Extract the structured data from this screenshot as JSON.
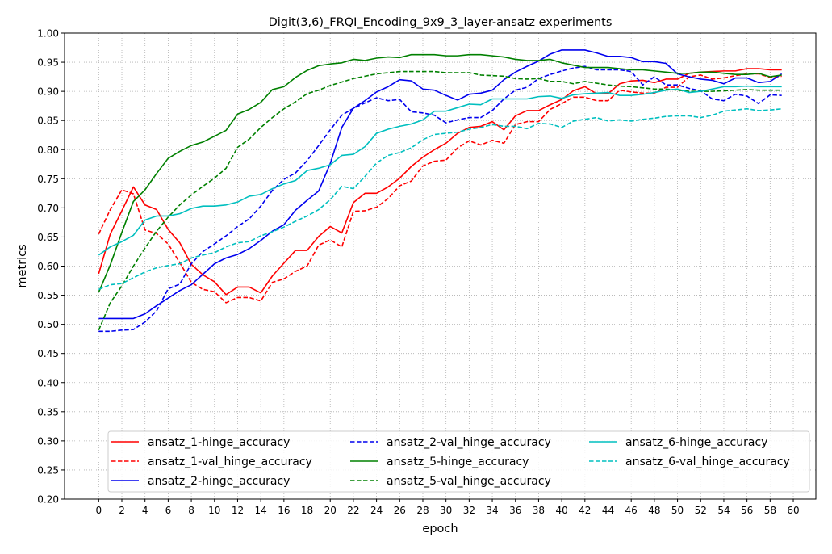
{
  "chart_data": {
    "type": "line",
    "title": "Digit(3,6)_FRQI_Encoding_9x9_3_layer-ansatz experiments",
    "xlabel": "epoch",
    "ylabel": "metrics",
    "xlim": [
      -2.95,
      61.95
    ],
    "ylim": [
      0.2,
      1.0
    ],
    "xticks": [
      0,
      2,
      4,
      6,
      8,
      10,
      12,
      14,
      16,
      18,
      20,
      22,
      24,
      26,
      28,
      30,
      32,
      34,
      36,
      38,
      40,
      42,
      44,
      46,
      48,
      50,
      52,
      54,
      56,
      58,
      60
    ],
    "yticks": [
      0.2,
      0.25,
      0.3,
      0.35,
      0.4,
      0.45,
      0.5,
      0.55,
      0.6,
      0.65,
      0.7,
      0.75,
      0.8,
      0.85,
      0.9,
      0.95,
      1.0
    ],
    "ytick_labels": [
      "0.20",
      "0.25",
      "0.30",
      "0.35",
      "0.40",
      "0.45",
      "0.50",
      "0.55",
      "0.60",
      "0.65",
      "0.70",
      "0.75",
      "0.80",
      "0.85",
      "0.90",
      "0.95",
      "1.00"
    ],
    "grid": true,
    "legend_position": "lower-center",
    "legend_columns": 3,
    "x": [
      0,
      1,
      2,
      3,
      4,
      5,
      6,
      7,
      8,
      9,
      10,
      11,
      12,
      13,
      14,
      15,
      16,
      17,
      18,
      19,
      20,
      21,
      22,
      23,
      24,
      25,
      26,
      27,
      28,
      29,
      30,
      31,
      32,
      33,
      34,
      35,
      36,
      37,
      38,
      39,
      40,
      41,
      42,
      43,
      44,
      45,
      46,
      47,
      48,
      49,
      50,
      51,
      52,
      53,
      54,
      55,
      56,
      57,
      58,
      59
    ],
    "series": [
      {
        "name": "ansatz_1-hinge_accuracy",
        "color": "#ff0000",
        "dash": "solid",
        "values": [
          0.587,
          0.655,
          0.695,
          0.736,
          0.705,
          0.697,
          0.663,
          0.64,
          0.603,
          0.585,
          0.573,
          0.551,
          0.564,
          0.564,
          0.554,
          0.583,
          0.605,
          0.627,
          0.627,
          0.651,
          0.668,
          0.657,
          0.709,
          0.725,
          0.725,
          0.736,
          0.751,
          0.771,
          0.787,
          0.8,
          0.811,
          0.828,
          0.838,
          0.84,
          0.848,
          0.834,
          0.858,
          0.867,
          0.867,
          0.877,
          0.886,
          0.901,
          0.908,
          0.896,
          0.896,
          0.913,
          0.918,
          0.919,
          0.915,
          0.921,
          0.921,
          0.931,
          0.933,
          0.934,
          0.935,
          0.935,
          0.939,
          0.939,
          0.937,
          0.937
        ]
      },
      {
        "name": "ansatz_1-val_hinge_accuracy",
        "color": "#ff0000",
        "dash": "dashed",
        "values": [
          0.655,
          0.697,
          0.731,
          0.724,
          0.662,
          0.656,
          0.638,
          0.606,
          0.572,
          0.56,
          0.556,
          0.537,
          0.546,
          0.546,
          0.54,
          0.572,
          0.578,
          0.591,
          0.6,
          0.636,
          0.645,
          0.633,
          0.694,
          0.695,
          0.701,
          0.716,
          0.738,
          0.746,
          0.772,
          0.78,
          0.782,
          0.803,
          0.815,
          0.808,
          0.816,
          0.811,
          0.843,
          0.848,
          0.848,
          0.869,
          0.879,
          0.89,
          0.89,
          0.884,
          0.884,
          0.902,
          0.899,
          0.897,
          0.897,
          0.907,
          0.907,
          0.925,
          0.928,
          0.921,
          0.923,
          0.927,
          0.93,
          0.93,
          0.924,
          0.926
        ]
      },
      {
        "name": "ansatz_2-hinge_accuracy",
        "color": "#0000ee",
        "dash": "solid",
        "values": [
          0.51,
          0.51,
          0.51,
          0.51,
          0.518,
          0.532,
          0.545,
          0.558,
          0.568,
          0.586,
          0.604,
          0.614,
          0.62,
          0.63,
          0.644,
          0.66,
          0.671,
          0.696,
          0.713,
          0.729,
          0.776,
          0.838,
          0.871,
          0.884,
          0.899,
          0.908,
          0.92,
          0.918,
          0.904,
          0.902,
          0.893,
          0.885,
          0.895,
          0.897,
          0.902,
          0.92,
          0.933,
          0.943,
          0.952,
          0.964,
          0.971,
          0.971,
          0.971,
          0.966,
          0.96,
          0.96,
          0.958,
          0.951,
          0.951,
          0.948,
          0.93,
          0.925,
          0.921,
          0.919,
          0.913,
          0.923,
          0.923,
          0.915,
          0.917,
          0.93
        ]
      },
      {
        "name": "ansatz_2-val_hinge_accuracy",
        "color": "#0000ee",
        "dash": "dashed",
        "values": [
          0.488,
          0.488,
          0.49,
          0.491,
          0.504,
          0.523,
          0.561,
          0.569,
          0.604,
          0.625,
          0.638,
          0.652,
          0.668,
          0.681,
          0.703,
          0.73,
          0.749,
          0.76,
          0.781,
          0.807,
          0.834,
          0.859,
          0.871,
          0.88,
          0.889,
          0.884,
          0.886,
          0.865,
          0.863,
          0.859,
          0.846,
          0.851,
          0.855,
          0.855,
          0.867,
          0.887,
          0.902,
          0.907,
          0.922,
          0.929,
          0.935,
          0.94,
          0.943,
          0.937,
          0.937,
          0.937,
          0.934,
          0.911,
          0.925,
          0.911,
          0.911,
          0.905,
          0.901,
          0.887,
          0.884,
          0.895,
          0.892,
          0.879,
          0.894,
          0.893
        ]
      },
      {
        "name": "ansatz_5-hinge_accuracy",
        "color": "#008000",
        "dash": "solid",
        "values": [
          0.555,
          0.602,
          0.658,
          0.711,
          0.731,
          0.759,
          0.785,
          0.797,
          0.807,
          0.813,
          0.823,
          0.833,
          0.861,
          0.869,
          0.881,
          0.903,
          0.908,
          0.924,
          0.936,
          0.944,
          0.947,
          0.949,
          0.955,
          0.953,
          0.957,
          0.959,
          0.958,
          0.963,
          0.963,
          0.963,
          0.961,
          0.961,
          0.963,
          0.963,
          0.961,
          0.959,
          0.955,
          0.953,
          0.953,
          0.955,
          0.949,
          0.945,
          0.941,
          0.941,
          0.941,
          0.939,
          0.937,
          0.937,
          0.935,
          0.933,
          0.931,
          0.931,
          0.933,
          0.933,
          0.931,
          0.929,
          0.929,
          0.931,
          0.925,
          0.928
        ]
      },
      {
        "name": "ansatz_5-val_hinge_accuracy",
        "color": "#008000",
        "dash": "dashed",
        "values": [
          0.49,
          0.537,
          0.566,
          0.6,
          0.631,
          0.66,
          0.684,
          0.705,
          0.722,
          0.737,
          0.751,
          0.768,
          0.804,
          0.818,
          0.838,
          0.855,
          0.87,
          0.882,
          0.896,
          0.902,
          0.91,
          0.916,
          0.922,
          0.926,
          0.93,
          0.932,
          0.934,
          0.934,
          0.934,
          0.934,
          0.932,
          0.932,
          0.932,
          0.928,
          0.927,
          0.926,
          0.922,
          0.921,
          0.922,
          0.917,
          0.917,
          0.913,
          0.917,
          0.914,
          0.911,
          0.909,
          0.908,
          0.906,
          0.904,
          0.904,
          0.902,
          0.9,
          0.9,
          0.9,
          0.901,
          0.902,
          0.903,
          0.902,
          0.902,
          0.902
        ]
      },
      {
        "name": "ansatz_6-hinge_accuracy",
        "color": "#00bfbf",
        "dash": "solid",
        "values": [
          0.619,
          0.633,
          0.642,
          0.653,
          0.679,
          0.686,
          0.686,
          0.69,
          0.699,
          0.703,
          0.703,
          0.705,
          0.71,
          0.72,
          0.723,
          0.733,
          0.741,
          0.747,
          0.764,
          0.768,
          0.774,
          0.79,
          0.792,
          0.805,
          0.828,
          0.835,
          0.84,
          0.844,
          0.851,
          0.866,
          0.866,
          0.872,
          0.878,
          0.877,
          0.887,
          0.887,
          0.887,
          0.887,
          0.891,
          0.892,
          0.888,
          0.894,
          0.896,
          0.897,
          0.898,
          0.893,
          0.893,
          0.895,
          0.898,
          0.902,
          0.904,
          0.898,
          0.9,
          0.904,
          0.908,
          0.908,
          0.909,
          0.908,
          0.908,
          0.908
        ]
      },
      {
        "name": "ansatz_6-val_hinge_accuracy",
        "color": "#00bfbf",
        "dash": "dashed",
        "values": [
          0.56,
          0.568,
          0.57,
          0.58,
          0.59,
          0.597,
          0.601,
          0.604,
          0.614,
          0.619,
          0.623,
          0.633,
          0.64,
          0.642,
          0.652,
          0.659,
          0.667,
          0.677,
          0.686,
          0.697,
          0.714,
          0.737,
          0.733,
          0.754,
          0.777,
          0.79,
          0.795,
          0.803,
          0.817,
          0.826,
          0.828,
          0.83,
          0.835,
          0.838,
          0.843,
          0.84,
          0.84,
          0.836,
          0.845,
          0.844,
          0.838,
          0.849,
          0.852,
          0.855,
          0.849,
          0.851,
          0.849,
          0.852,
          0.854,
          0.857,
          0.858,
          0.858,
          0.855,
          0.859,
          0.866,
          0.868,
          0.87,
          0.867,
          0.868,
          0.87
        ]
      }
    ]
  }
}
